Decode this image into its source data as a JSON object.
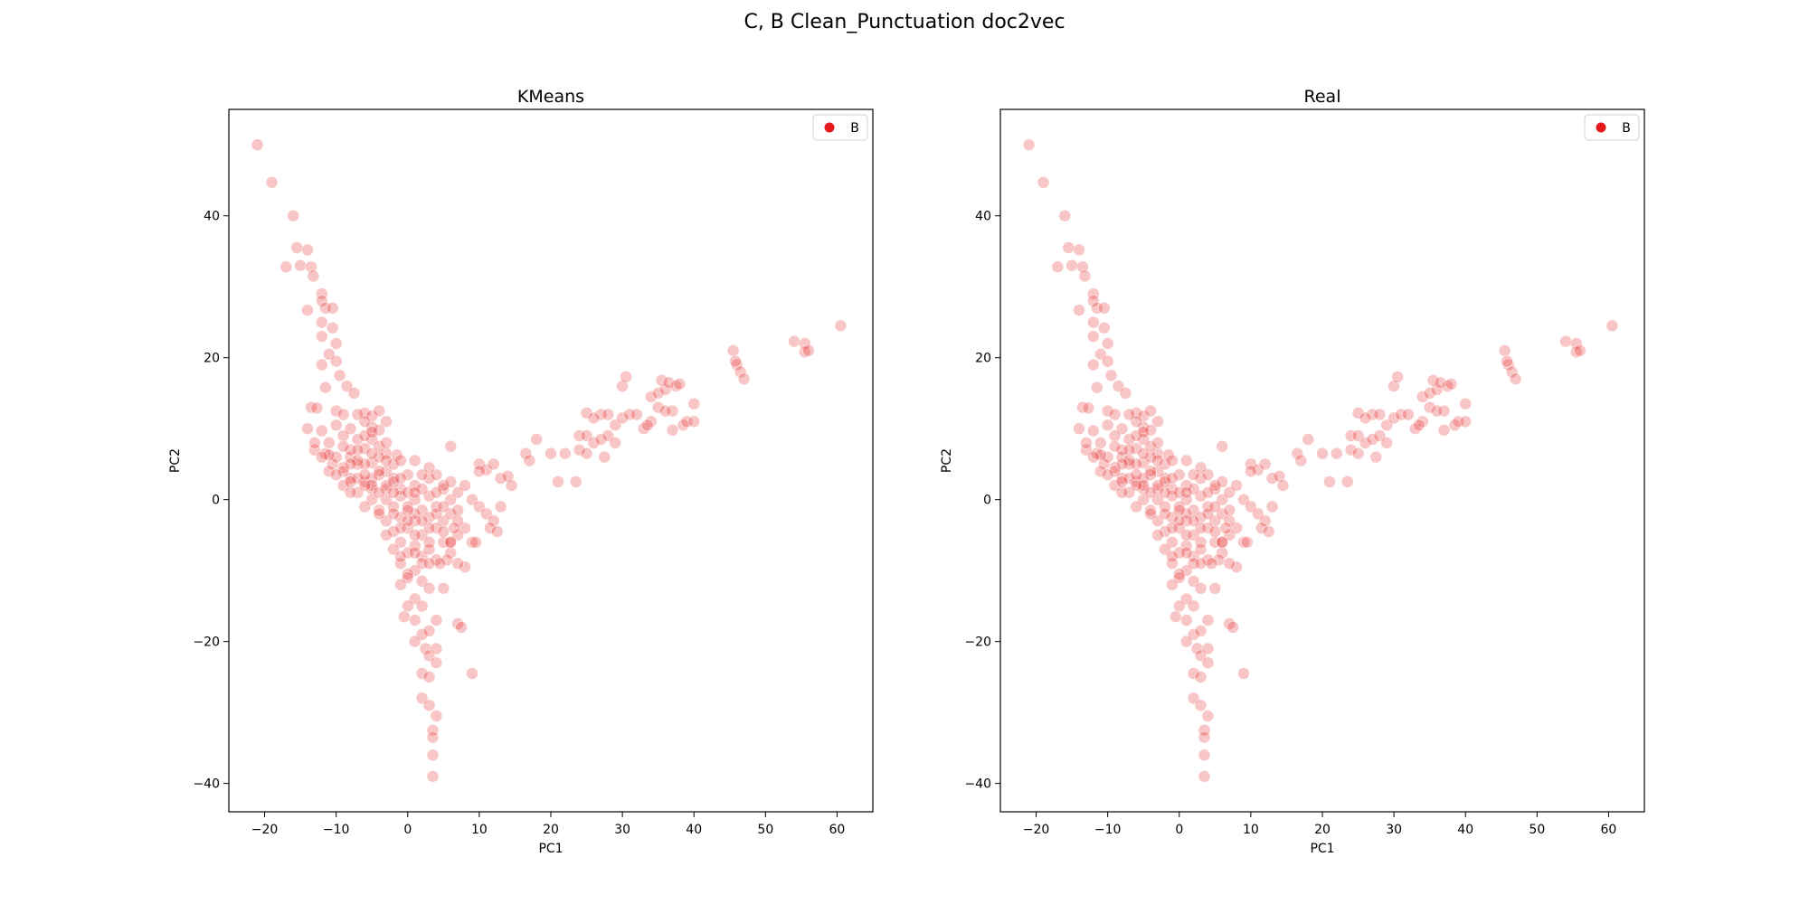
{
  "figure_title": "C, B Clean_Punctuation doc2vec",
  "colors": {
    "point": "#e41a1c",
    "axes": "#000000",
    "background": "#ffffff"
  },
  "chart_data": [
    {
      "type": "scatter",
      "title": "KMeans",
      "xlabel": "PC1",
      "ylabel": "PC2",
      "xlim": [
        -25,
        65
      ],
      "ylim": [
        -44,
        55
      ],
      "xticks": [
        -20,
        -10,
        0,
        10,
        20,
        30,
        40,
        50,
        60
      ],
      "yticks": [
        -40,
        -20,
        0,
        20,
        40
      ],
      "grid": false,
      "legend": {
        "position": "top-right",
        "entries": [
          "B"
        ]
      },
      "series": [
        {
          "name": "B",
          "color": "#e41a1c",
          "alpha": 0.25,
          "points": [
            [
              -21,
              50
            ],
            [
              -19,
              44.7
            ],
            [
              -16,
              40
            ],
            [
              -17,
              32.8
            ],
            [
              -15.5,
              35.5
            ],
            [
              -14,
              35.2
            ],
            [
              -15,
              33
            ],
            [
              -13.5,
              32.8
            ],
            [
              -13.2,
              31.5
            ],
            [
              -14,
              26.7
            ],
            [
              -12,
              29
            ],
            [
              -12,
              28
            ],
            [
              -11.5,
              27
            ],
            [
              -10.5,
              27
            ],
            [
              -12,
              25
            ],
            [
              -10.5,
              24.2
            ],
            [
              -12,
              23
            ],
            [
              -10,
              22
            ],
            [
              -11,
              20.5
            ],
            [
              -12,
              19
            ],
            [
              -10,
              19.5
            ],
            [
              -9.5,
              17.5
            ],
            [
              -8.5,
              16
            ],
            [
              -11.5,
              15.8
            ],
            [
              -7.5,
              15
            ],
            [
              -13.5,
              13
            ],
            [
              -12.7,
              12.9
            ],
            [
              -10,
              12.5
            ],
            [
              -9,
              12
            ],
            [
              -6,
              12.2
            ],
            [
              -5,
              11.8
            ],
            [
              -3,
              11
            ],
            [
              -14,
              10
            ],
            [
              -12,
              9.7
            ],
            [
              -10,
              10.5
            ],
            [
              -8,
              10
            ],
            [
              -5,
              10.2
            ],
            [
              -13,
              7
            ],
            [
              -11,
              8
            ],
            [
              -7,
              8.5
            ],
            [
              -5,
              8.5
            ],
            [
              -4,
              9.8
            ],
            [
              -11.5,
              6.5
            ],
            [
              -8,
              6
            ],
            [
              -6,
              7.2
            ],
            [
              -3,
              6.5
            ],
            [
              -1.5,
              6.3
            ],
            [
              -10.5,
              5
            ],
            [
              -9,
              4.5
            ],
            [
              -7,
              5
            ],
            [
              -5,
              5.2
            ],
            [
              -3,
              4
            ],
            [
              -8,
              3
            ],
            [
              -6,
              2.5
            ],
            [
              -4,
              3.5
            ],
            [
              -2,
              3
            ],
            [
              0,
              3.5
            ],
            [
              -7,
              1
            ],
            [
              -5,
              1.5
            ],
            [
              -3,
              1.5
            ],
            [
              -1,
              1.5
            ],
            [
              1,
              2
            ],
            [
              3,
              3
            ],
            [
              -5,
              0
            ],
            [
              -3,
              0
            ],
            [
              -1,
              0.5
            ],
            [
              1,
              0
            ],
            [
              3,
              0.5
            ],
            [
              5,
              1.5
            ],
            [
              -4,
              -1.5
            ],
            [
              -2,
              -1
            ],
            [
              0,
              -1
            ],
            [
              2,
              -1.5
            ],
            [
              4,
              -1
            ],
            [
              6,
              0
            ],
            [
              -3,
              -3
            ],
            [
              -1,
              -2.5
            ],
            [
              1,
              -3
            ],
            [
              3,
              -2.5
            ],
            [
              5,
              -3
            ],
            [
              -2,
              -4.5
            ],
            [
              0,
              -4
            ],
            [
              2,
              -5
            ],
            [
              4,
              -4
            ],
            [
              -1,
              -6
            ],
            [
              1,
              -6.5
            ],
            [
              3,
              -6
            ],
            [
              5,
              -6
            ],
            [
              0,
              -7.5
            ],
            [
              2,
              -8
            ],
            [
              4,
              -8.5
            ],
            [
              6,
              -7.5
            ],
            [
              -9,
              4
            ],
            [
              -7,
              3
            ],
            [
              -5,
              3
            ],
            [
              -3,
              2
            ],
            [
              -8,
              7
            ],
            [
              -6,
              5
            ],
            [
              -4,
              6
            ],
            [
              -2,
              5
            ],
            [
              -9,
              9
            ],
            [
              -7,
              7
            ],
            [
              -4,
              4
            ],
            [
              -2,
              1
            ],
            [
              0,
              1
            ],
            [
              2,
              1.5
            ],
            [
              -6,
              3.5
            ],
            [
              -5,
              2
            ],
            [
              -2,
              2.5
            ],
            [
              -1,
              3
            ],
            [
              1,
              -2
            ],
            [
              3,
              -4
            ],
            [
              0,
              -3
            ],
            [
              -1,
              -4
            ],
            [
              2,
              -3
            ],
            [
              4,
              -2
            ],
            [
              1,
              -5
            ],
            [
              3,
              -7
            ],
            [
              5,
              -4.5
            ],
            [
              6,
              -2
            ],
            [
              -3,
              5.5
            ],
            [
              -5,
              6.5
            ],
            [
              -7,
              5.5
            ],
            [
              -8,
              5
            ],
            [
              -10,
              6
            ],
            [
              -11,
              6.3
            ],
            [
              -9,
              7.5
            ],
            [
              -6,
              9
            ],
            [
              -4,
              7.5
            ],
            [
              -6,
              11
            ],
            [
              4,
              3.5
            ],
            [
              5,
              2
            ],
            [
              6,
              2.5
            ],
            [
              7,
              1
            ],
            [
              8,
              2
            ],
            [
              9,
              0
            ],
            [
              10,
              -1
            ],
            [
              11,
              -2
            ],
            [
              12,
              -3
            ],
            [
              13,
              -1
            ],
            [
              8,
              -4
            ],
            [
              7,
              -5
            ],
            [
              9,
              -6
            ],
            [
              10,
              5
            ],
            [
              11,
              4.2
            ],
            [
              12,
              5
            ],
            [
              13,
              3
            ],
            [
              14,
              3.3
            ],
            [
              14.5,
              2
            ],
            [
              6,
              7.5
            ],
            [
              10,
              4
            ],
            [
              8,
              -9.5
            ],
            [
              7,
              -9
            ],
            [
              5.5,
              -8.5
            ],
            [
              5,
              -12.5
            ],
            [
              11.5,
              -4
            ],
            [
              12.5,
              -4.5
            ],
            [
              9.5,
              -6
            ],
            [
              6,
              -6
            ],
            [
              7,
              -3
            ],
            [
              1,
              -10
            ],
            [
              2,
              -11.5
            ],
            [
              3,
              -12.5
            ],
            [
              -1,
              -9
            ],
            [
              0,
              -10.5
            ],
            [
              1,
              -14
            ],
            [
              2,
              -15
            ],
            [
              0,
              -15
            ],
            [
              -0.5,
              -16.5
            ],
            [
              1,
              -17
            ],
            [
              2,
              -19
            ],
            [
              3,
              -18.5
            ],
            [
              4,
              -17
            ],
            [
              2.5,
              -21
            ],
            [
              3,
              -22
            ],
            [
              4,
              -23
            ],
            [
              2,
              -24.5
            ],
            [
              3,
              -25
            ],
            [
              2,
              -28
            ],
            [
              3,
              -29
            ],
            [
              3.5,
              -32.5
            ],
            [
              3.5,
              -33.5
            ],
            [
              4,
              -30.5
            ],
            [
              3.5,
              -36
            ],
            [
              3.5,
              -39
            ],
            [
              7,
              -17.5
            ],
            [
              7.5,
              -18
            ],
            [
              9,
              -24.5
            ],
            [
              4,
              -21
            ],
            [
              1,
              -20
            ],
            [
              18,
              8.5
            ],
            [
              20,
              6.5
            ],
            [
              16.5,
              6.5
            ],
            [
              17,
              5.5
            ],
            [
              21,
              2.5
            ],
            [
              23.5,
              2.5
            ],
            [
              22,
              6.5
            ],
            [
              24,
              9
            ],
            [
              25,
              9
            ],
            [
              24,
              7
            ],
            [
              25,
              6.5
            ],
            [
              26,
              8
            ],
            [
              27,
              8.5
            ],
            [
              28,
              9
            ],
            [
              29,
              10.5
            ],
            [
              30,
              11.5
            ],
            [
              27,
              12
            ],
            [
              25,
              12.2
            ],
            [
              26,
              11.5
            ],
            [
              28,
              12
            ],
            [
              31,
              12
            ],
            [
              32,
              12
            ],
            [
              30,
              16
            ],
            [
              30.5,
              17.3
            ],
            [
              27.5,
              6
            ],
            [
              29,
              8
            ],
            [
              33,
              10
            ],
            [
              34,
              11
            ],
            [
              33.5,
              10.5
            ],
            [
              35,
              13
            ],
            [
              34,
              14.5
            ],
            [
              35,
              15
            ],
            [
              36,
              15.5
            ],
            [
              35.5,
              16.8
            ],
            [
              36.5,
              16.5
            ],
            [
              37.5,
              16
            ],
            [
              38,
              16.3
            ],
            [
              37,
              12.5
            ],
            [
              36,
              12.5
            ],
            [
              37,
              9.8
            ],
            [
              38.5,
              10.5
            ],
            [
              39,
              11
            ],
            [
              40,
              11
            ],
            [
              40,
              13.5
            ],
            [
              45.5,
              21
            ],
            [
              46,
              19
            ],
            [
              45.8,
              19.5
            ],
            [
              46.5,
              18
            ],
            [
              47,
              17
            ],
            [
              54,
              22.3
            ],
            [
              55.5,
              22
            ],
            [
              55.5,
              20.8
            ],
            [
              56,
              21
            ],
            [
              60.5,
              24.5
            ],
            [
              -13,
              8
            ],
            [
              -12,
              6
            ],
            [
              -11,
              4
            ],
            [
              -9,
              2
            ],
            [
              -8,
              1
            ],
            [
              -6,
              -1
            ],
            [
              -4,
              -2
            ],
            [
              -3,
              -5
            ],
            [
              -2,
              -7
            ],
            [
              -1,
              -8
            ],
            [
              1,
              -7.5
            ],
            [
              2,
              -9
            ],
            [
              0,
              -11
            ],
            [
              -1,
              -12
            ],
            [
              6,
              -6
            ],
            [
              6.5,
              -4
            ],
            [
              4.5,
              -9
            ],
            [
              3,
              -9
            ],
            [
              0,
              -1.5
            ],
            [
              -2,
              -2
            ],
            [
              1,
              1
            ],
            [
              2,
              3.5
            ],
            [
              -4,
              1
            ],
            [
              -6,
              2
            ],
            [
              -8,
              2.5
            ],
            [
              -10,
              3.5
            ],
            [
              4,
              1
            ],
            [
              5,
              -1
            ],
            [
              7,
              -1.5
            ],
            [
              3,
              4.5
            ],
            [
              1,
              5.5
            ],
            [
              -1,
              5.5
            ],
            [
              -3,
              8
            ],
            [
              -5,
              9.5
            ],
            [
              -7,
              12
            ],
            [
              -4,
              12.5
            ]
          ]
        }
      ]
    },
    {
      "type": "scatter",
      "title": "Real",
      "xlabel": "PC1",
      "ylabel": "PC2",
      "xlim": [
        -25,
        65
      ],
      "ylim": [
        -44,
        55
      ],
      "xticks": [
        -20,
        -10,
        0,
        10,
        20,
        30,
        40,
        50,
        60
      ],
      "yticks": [
        -40,
        -20,
        0,
        20,
        40
      ],
      "grid": false,
      "legend": {
        "position": "top-right",
        "entries": [
          "B"
        ]
      },
      "series": [
        {
          "name": "B",
          "color": "#e41a1c",
          "alpha": 0.25,
          "points": "same-as-KMeans"
        }
      ]
    }
  ]
}
